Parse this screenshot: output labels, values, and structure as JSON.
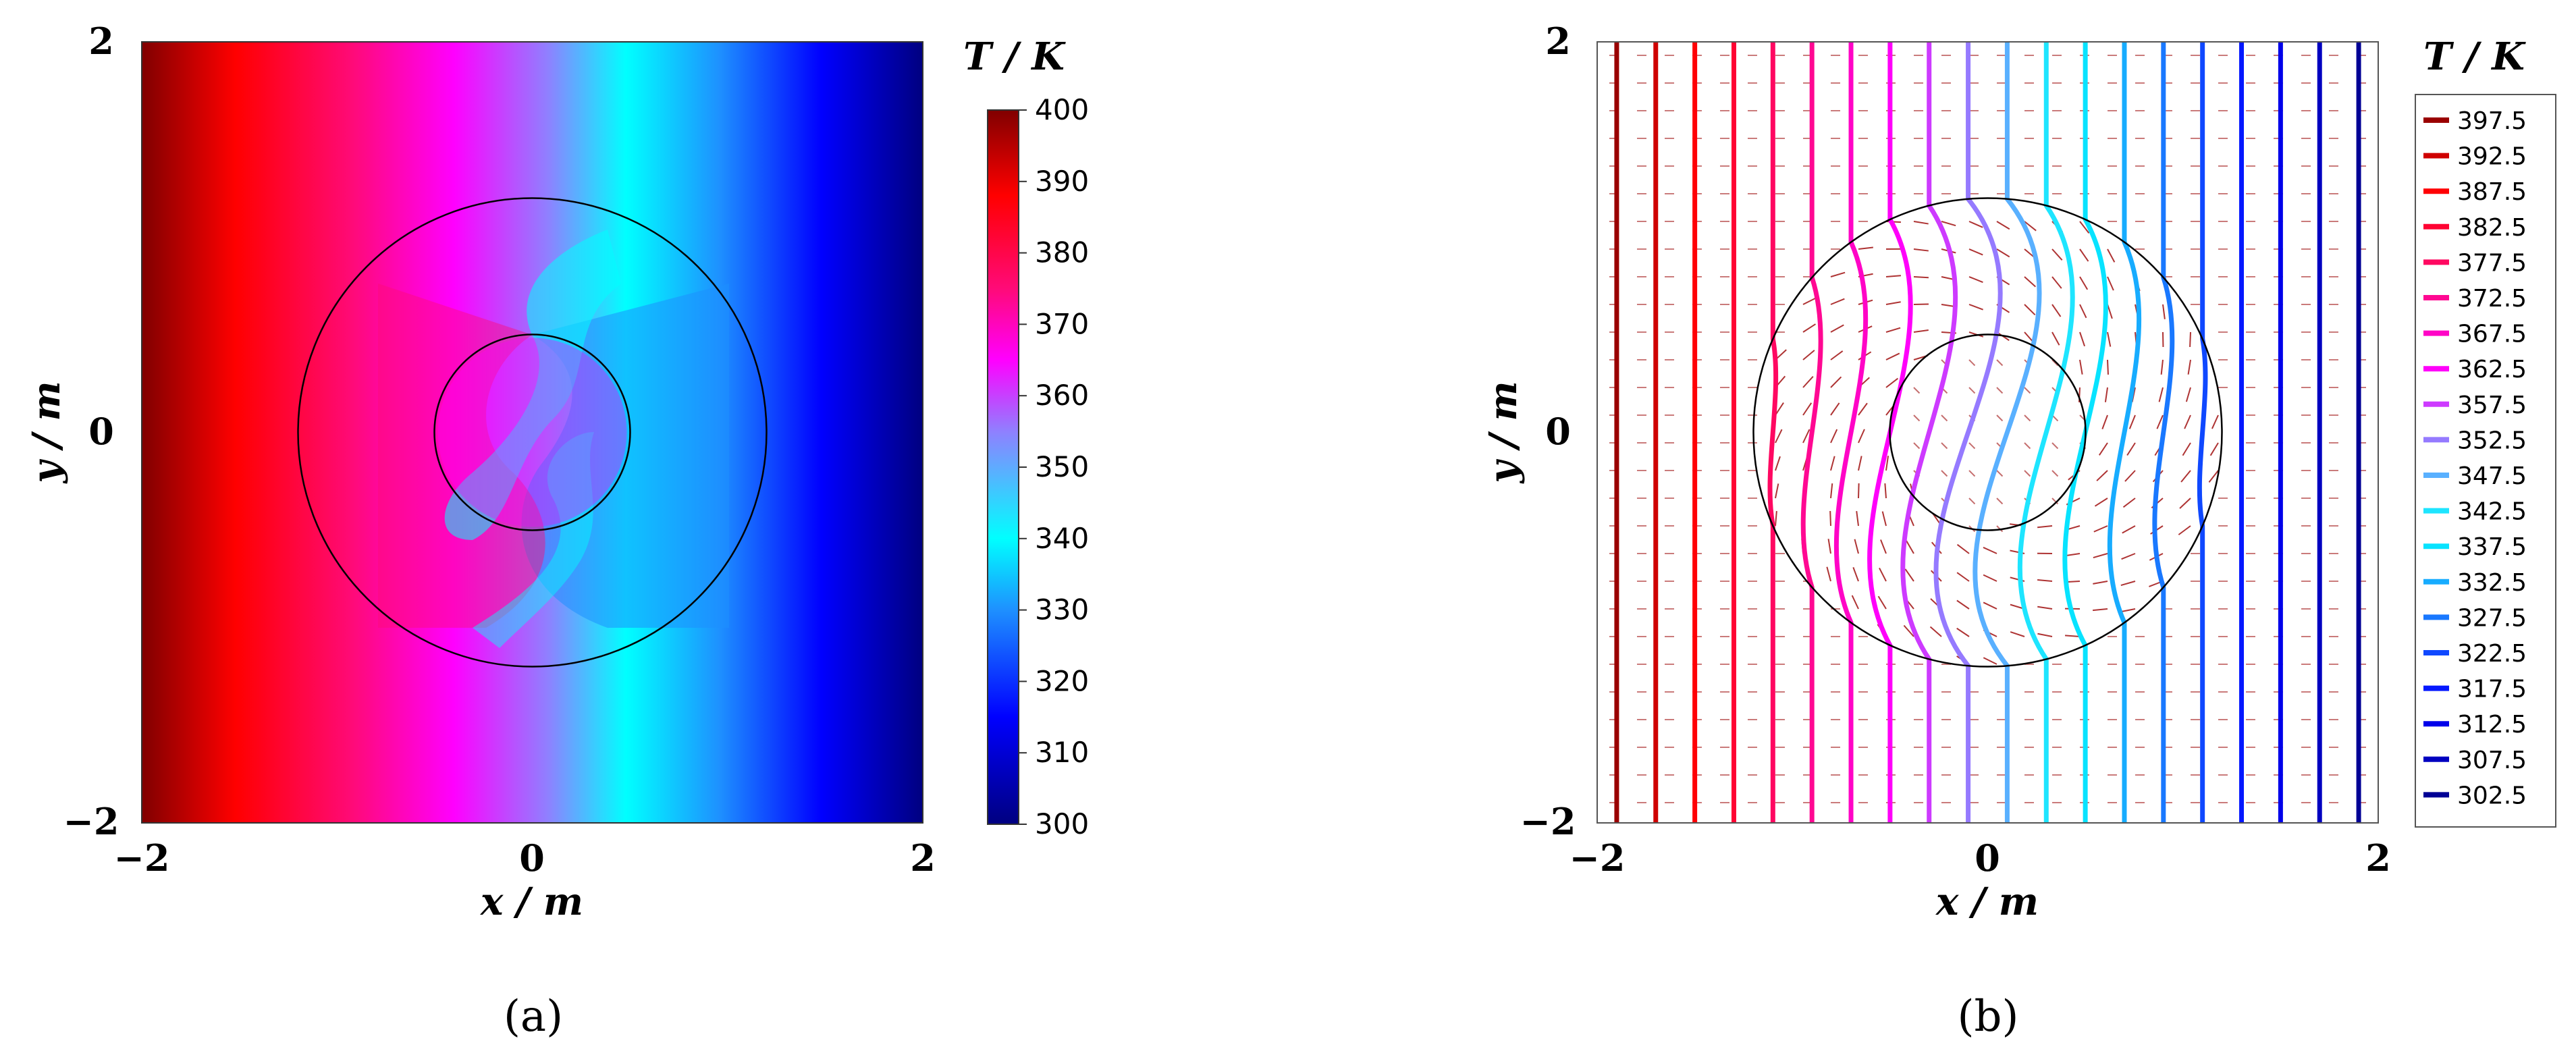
{
  "chart_data": [
    {
      "id": "a",
      "type": "heatmap",
      "panel_label": "(a)",
      "xlabel": "x / m",
      "ylabel": "y / m",
      "xlim": [
        -2,
        2
      ],
      "ylim": [
        -2,
        2
      ],
      "x_ticks": [
        "−2",
        "0",
        "2"
      ],
      "y_ticks": [
        "−2",
        "0",
        "2"
      ],
      "colorbar": {
        "label": "T / K",
        "range": [
          300,
          400
        ],
        "ticks": [
          "400",
          "390",
          "380",
          "370",
          "360",
          "350",
          "340",
          "330",
          "320",
          "310",
          "300"
        ],
        "tick_values": [
          400,
          390,
          380,
          370,
          360,
          350,
          340,
          330,
          320,
          310,
          300
        ],
        "colors": [
          "#000080",
          "#0000ff",
          "#1e90ff",
          "#00ffff",
          "#ff00ff",
          "#ff0000",
          "#800000"
        ]
      },
      "circles": [
        {
          "cx": 0,
          "cy": 0,
          "r": 0.5
        },
        {
          "cx": 0,
          "cy": 0,
          "r": 1.2
        }
      ],
      "grid": false
    },
    {
      "id": "b",
      "type": "line",
      "subtype": "isotherms-and-heat-flux",
      "panel_label": "(b)",
      "xlabel": "x / m",
      "ylabel": "y / m",
      "xlim": [
        -2,
        2
      ],
      "ylim": [
        -2,
        2
      ],
      "x_ticks": [
        "−2",
        "0",
        "2"
      ],
      "y_ticks": [
        "−2",
        "0",
        "2"
      ],
      "legend": {
        "label": "T / K",
        "placement": "right",
        "entries": [
          "397.5",
          "392.5",
          "387.5",
          "382.5",
          "377.5",
          "372.5",
          "367.5",
          "362.5",
          "357.5",
          "352.5",
          "347.5",
          "342.5",
          "337.5",
          "332.5",
          "327.5",
          "322.5",
          "317.5",
          "312.5",
          "307.5",
          "302.5"
        ],
        "values": [
          397.5,
          392.5,
          387.5,
          382.5,
          377.5,
          372.5,
          367.5,
          362.5,
          357.5,
          352.5,
          347.5,
          342.5,
          337.5,
          332.5,
          327.5,
          322.5,
          317.5,
          312.5,
          307.5,
          302.5
        ]
      },
      "circles": [
        {
          "cx": 0,
          "cy": 0,
          "r": 0.5
        },
        {
          "cx": 0,
          "cy": 0,
          "r": 1.2
        }
      ],
      "grid": false
    }
  ]
}
